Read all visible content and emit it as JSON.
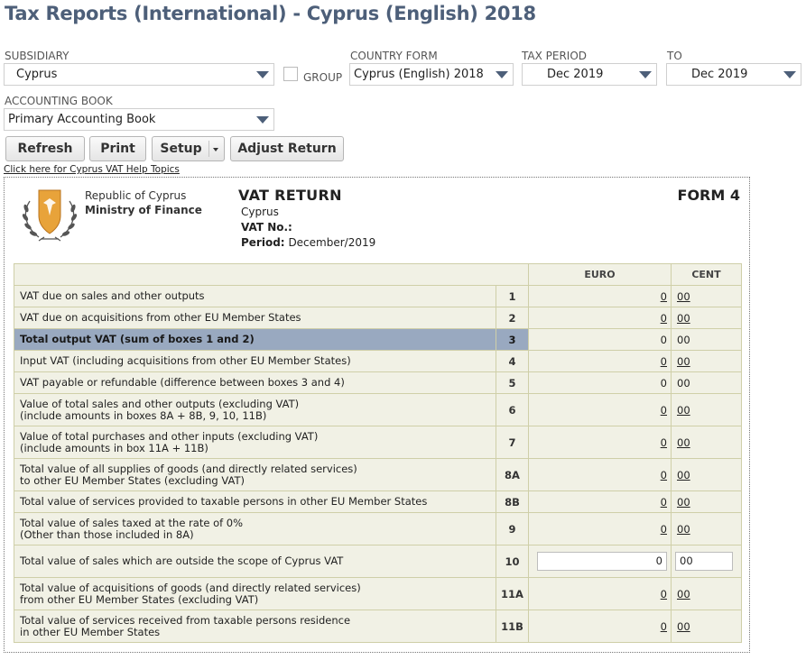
{
  "page": {
    "title": "Tax Reports (International) - Cyprus (English) 2018"
  },
  "filters": {
    "subsidiary_label": "SUBSIDIARY",
    "subsidiary_value": "Cyprus",
    "group_label": "GROUP",
    "country_form_label": "COUNTRY FORM",
    "country_form_value": "Cyprus (English) 2018",
    "tax_period_label": "TAX PERIOD",
    "tax_period_value": "Dec 2019",
    "to_label": "TO",
    "to_value": "Dec 2019",
    "accounting_book_label": "ACCOUNTING BOOK",
    "accounting_book_value": "Primary Accounting Book"
  },
  "toolbar": {
    "refresh": "Refresh",
    "print": "Print",
    "setup": "Setup",
    "adjust_return": "Adjust Return"
  },
  "help_link": "Click here for Cyprus VAT Help Topics",
  "report": {
    "org_line1": "Republic of Cyprus",
    "org_line2": "Ministry of Finance",
    "title": "VAT RETURN",
    "form": "FORM 4",
    "country": "Cyprus",
    "vat_no_label": "VAT No.:",
    "period_label": "Period:",
    "period_value": "December/2019",
    "col_euro": "EURO",
    "col_cent": "CENT",
    "rows": [
      {
        "desc1": "VAT due on sales and other outputs",
        "desc2": "",
        "box": "1",
        "euro": "0",
        "cent": "00"
      },
      {
        "desc1": "VAT due on acquisitions from other EU Member States",
        "desc2": "",
        "box": "2",
        "euro": "0",
        "cent": "00"
      },
      {
        "desc1": "Total output VAT (sum of boxes 1 and 2)",
        "desc2": "",
        "box": "3",
        "euro": "0",
        "cent": "00"
      },
      {
        "desc1": "Input VAT (including acquisitions from other EU Member States)",
        "desc2": "",
        "box": "4",
        "euro": "0",
        "cent": "00"
      },
      {
        "desc1": "VAT payable or refundable (difference between boxes 3 and 4)",
        "desc2": "",
        "box": "5",
        "euro": "0",
        "cent": "00"
      },
      {
        "desc1": "Value of total sales and other outputs (excluding VAT)",
        "desc2": "(include amounts in boxes 8A + 8B, 9, 10, 11B)",
        "box": "6",
        "euro": "0",
        "cent": "00"
      },
      {
        "desc1": "Value of total purchases and other inputs (excluding VAT)",
        "desc2": "(include amounts in box 11A + 11B)",
        "box": "7",
        "euro": "0",
        "cent": "00"
      },
      {
        "desc1": "Total value of all supplies of goods (and directly related services)",
        "desc2": "to other EU Member States (excluding VAT)",
        "box": "8A",
        "euro": "0",
        "cent": "00"
      },
      {
        "desc1": "Total value of services provided to taxable persons in other EU Member States",
        "desc2": "",
        "box": "8B",
        "euro": "0",
        "cent": "00"
      },
      {
        "desc1": "Total value of sales taxed at the rate of 0%",
        "desc2": "(Other than those included in 8A)",
        "box": "9",
        "euro": "0",
        "cent": "00"
      },
      {
        "desc1": "Total value of sales which are outside the scope of Cyprus VAT",
        "desc2": "",
        "box": "10",
        "euro": "0",
        "cent": "00"
      },
      {
        "desc1": "Total value of acquisitions of goods (and directly related services)",
        "desc2": "from other EU Member States (excluding VAT)",
        "box": "11A",
        "euro": "0",
        "cent": "00"
      },
      {
        "desc1": "Total value of services received from taxable persons residence",
        "desc2": "in other EU Member States",
        "box": "11B",
        "euro": "0",
        "cent": "00"
      }
    ]
  }
}
